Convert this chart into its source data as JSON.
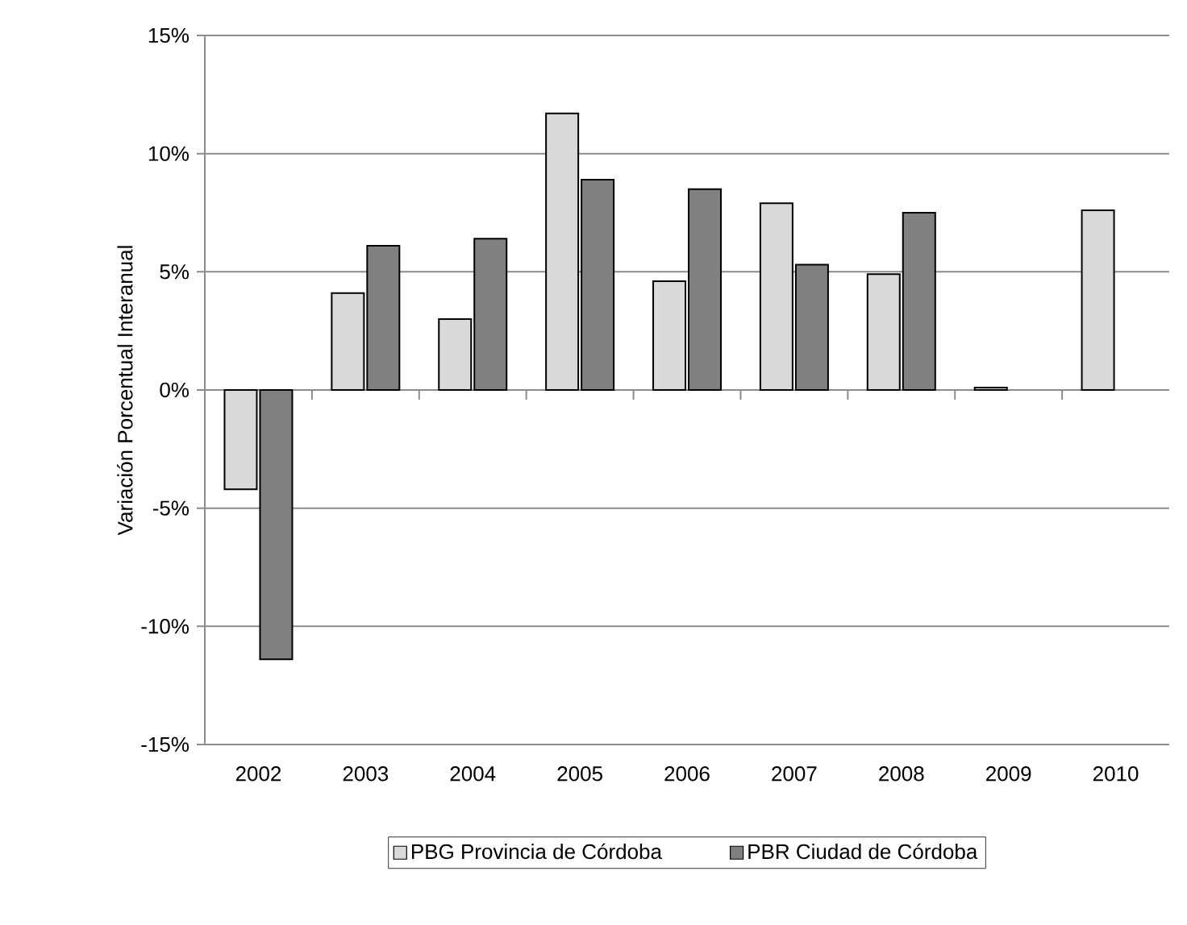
{
  "chart_data": {
    "type": "bar",
    "ylabel": "Variación Porcentual Interanual",
    "categories": [
      "2002",
      "2003",
      "2004",
      "2005",
      "2006",
      "2007",
      "2008",
      "2009",
      "2010"
    ],
    "series": [
      {
        "name": "PBG Provincia de Córdoba",
        "color": "#d9d9d9",
        "values": [
          -4.2,
          4.1,
          3.0,
          11.7,
          4.6,
          7.9,
          4.9,
          0.1,
          7.6
        ]
      },
      {
        "name": "PBR Ciudad de Córdoba",
        "color": "#808080",
        "values": [
          -11.4,
          6.1,
          6.4,
          8.9,
          8.5,
          5.3,
          7.5,
          null,
          null
        ]
      }
    ],
    "ylim": [
      -15,
      15
    ],
    "yticks": [
      {
        "value": -15,
        "label": "-15%"
      },
      {
        "value": -10,
        "label": "-10%"
      },
      {
        "value": -5,
        "label": "-5%"
      },
      {
        "value": 0,
        "label": "0%"
      },
      {
        "value": 5,
        "label": "5%"
      },
      {
        "value": 10,
        "label": "10%"
      },
      {
        "value": 15,
        "label": "15%"
      }
    ],
    "grid": "y",
    "legend": "bottom"
  }
}
